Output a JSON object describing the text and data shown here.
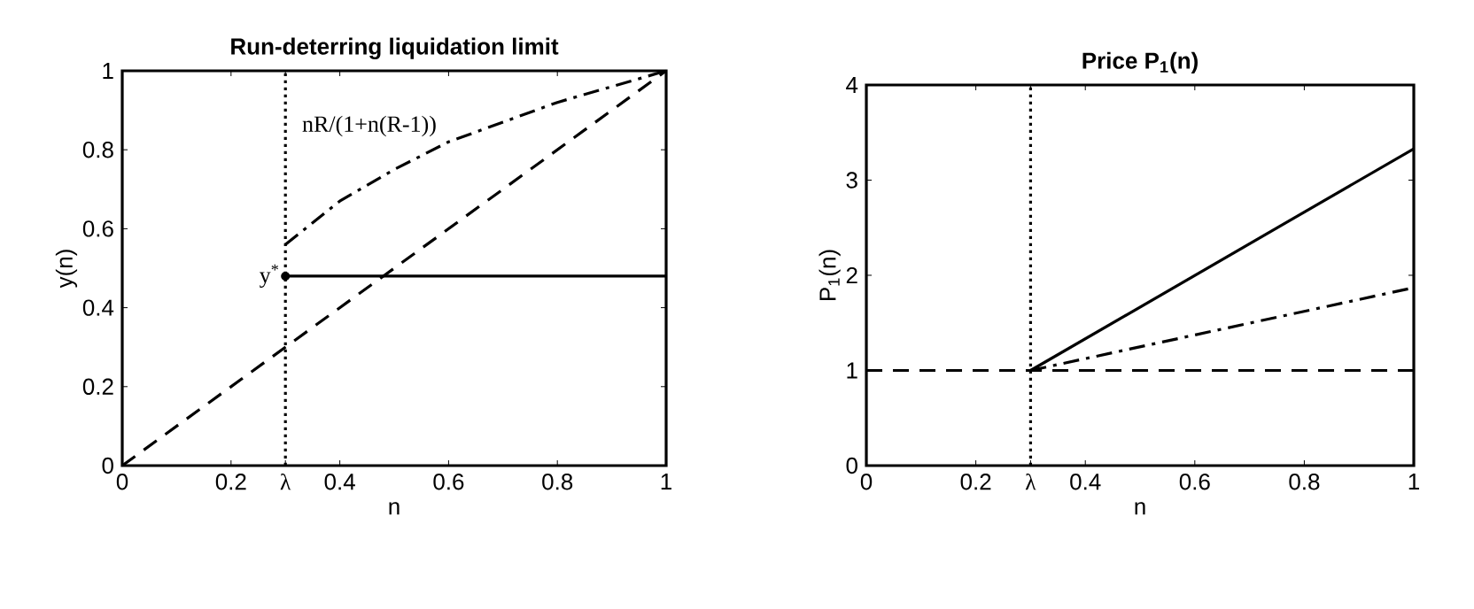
{
  "chart_data": [
    {
      "type": "line",
      "title": "Run-deterring liquidation limit",
      "xlabel": "n",
      "ylabel": "y(n)",
      "xlim": [
        0,
        1
      ],
      "ylim": [
        0,
        1
      ],
      "xticks": [
        0,
        0.2,
        {
          "value": 0.3,
          "label": "λ"
        },
        0.4,
        0.6,
        0.8,
        1
      ],
      "yticks": [
        0,
        0.2,
        0.4,
        0.6,
        0.8,
        1
      ],
      "series": [
        {
          "color": "#000000",
          "line_style": "dashed",
          "x": [
            0,
            1
          ],
          "values": [
            0,
            1
          ]
        },
        {
          "color": "#000000",
          "line_style": "dashdot",
          "x": [
            0.3,
            0.4,
            0.5,
            0.6,
            0.7,
            0.8,
            0.9,
            1
          ],
          "values": [
            0.56,
            0.67,
            0.75,
            0.82,
            0.87,
            0.92,
            0.96,
            1
          ]
        },
        {
          "color": "#000000",
          "line_style": "solid",
          "x": [
            0.3,
            1
          ],
          "values": [
            0.48,
            0.48
          ]
        }
      ],
      "ref_lines": [
        {
          "axis": "x",
          "value": 0.3,
          "line_style": "dotted",
          "color": "#000000"
        }
      ],
      "annotations": [
        {
          "text": "y$^{*}$",
          "x": 0.3,
          "y": 0.48
        },
        "nR/(1+n(R-1))"
      ],
      "grid": false
    },
    {
      "type": "line",
      "title": "Price P$_{1}$(n)",
      "xlabel": "n",
      "ylabel": "P$_{1}$(n)",
      "xlim": [
        0,
        1
      ],
      "ylim": [
        0,
        4
      ],
      "xticks": [
        0,
        0.2,
        {
          "value": 0.3,
          "label": "λ"
        },
        0.4,
        0.6,
        0.8,
        1
      ],
      "yticks": [
        0,
        1,
        2,
        3,
        4
      ],
      "series": [
        {
          "color": "#000000",
          "line_style": "dashed",
          "x": [
            0,
            1
          ],
          "values": [
            1,
            1
          ]
        },
        {
          "color": "#000000",
          "line_style": "solid",
          "x": [
            0.3,
            1
          ],
          "values": [
            1,
            3.33
          ]
        },
        {
          "color": "#000000",
          "line_style": "dashdot",
          "x": [
            0.3,
            1
          ],
          "values": [
            1,
            1.87
          ]
        }
      ],
      "ref_lines": [
        {
          "axis": "x",
          "value": 0.3,
          "line_style": "dotted",
          "color": "#000000"
        }
      ],
      "grid": false
    }
  ]
}
